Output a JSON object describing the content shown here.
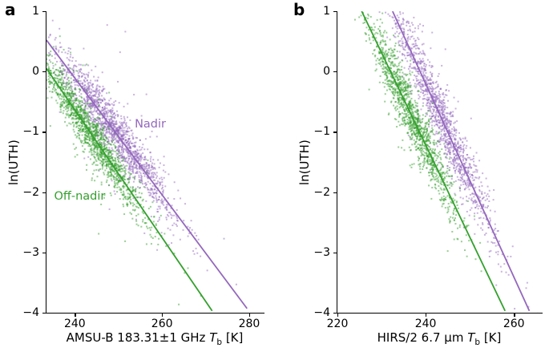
{
  "figure": {
    "background": "#ffffff"
  },
  "chart_data": [
    {
      "type": "scatter",
      "panel_label": "a",
      "ylabel": "ln(UTH)",
      "xlabel": {
        "pre": "AMSU-B 183.31±1 GHz ",
        "var": "T",
        "sub": "b",
        "post": " [K]"
      },
      "xlim": [
        233.5,
        283.5
      ],
      "ylim": [
        -4,
        1
      ],
      "xticks": [
        {
          "value": 240,
          "label": "240"
        },
        {
          "value": 260,
          "label": "260"
        },
        {
          "value": 280,
          "label": "280"
        }
      ],
      "yticks": [
        {
          "value": 1,
          "label": "1"
        },
        {
          "value": 0,
          "label": "0"
        },
        {
          "value": -1,
          "label": "−1"
        },
        {
          "value": -2,
          "label": "−2"
        },
        {
          "value": -3,
          "label": "−3"
        },
        {
          "value": -4,
          "label": "−4"
        }
      ],
      "series": [
        {
          "name": "Nadir",
          "color": "#9467bd",
          "line": {
            "x": [
              233.5,
              279.5
            ],
            "y": [
              0.52,
              -3.93
            ]
          },
          "scatter": {
            "count": 1500,
            "x_mean": 249.5,
            "x_sd": 7.0,
            "x_min": 234,
            "x_max": 282,
            "y_noise_sd": 0.2,
            "outlier_frac": 0.08,
            "outlier_mult": 2.8,
            "seed": 7
          }
        },
        {
          "name": "Off-nadir",
          "color": "#33a02c",
          "line": {
            "x": [
              233.5,
              271.5
            ],
            "y": [
              0.05,
              -3.97
            ]
          },
          "scatter": {
            "count": 1500,
            "x_mean": 243.5,
            "x_sd": 6.5,
            "x_min": 233.5,
            "x_max": 273,
            "y_noise_sd": 0.18,
            "outlier_frac": 0.08,
            "outlier_mult": 2.8,
            "seed": 11
          }
        }
      ],
      "annotations": [
        {
          "text": "Nadir",
          "x": 257.5,
          "y": -0.88,
          "color": "#9467bd"
        },
        {
          "text": "Off-nadir",
          "x": 241.3,
          "y": -2.07,
          "color": "#33a02c"
        }
      ]
    },
    {
      "type": "scatter",
      "panel_label": "b",
      "ylabel": "ln(UTH)",
      "xlabel": {
        "pre": "HIRS/2 6.7 μm ",
        "var": "T",
        "sub": "b",
        "post": " [K]"
      },
      "xlim": [
        220,
        266.5
      ],
      "ylim": [
        -4,
        1
      ],
      "xticks": [
        {
          "value": 220,
          "label": "220"
        },
        {
          "value": 240,
          "label": "240"
        },
        {
          "value": 260,
          "label": "260"
        }
      ],
      "yticks": [
        {
          "value": 1,
          "label": "1"
        },
        {
          "value": 0,
          "label": "0"
        },
        {
          "value": -1,
          "label": "−1"
        },
        {
          "value": -2,
          "label": "−2"
        },
        {
          "value": -3,
          "label": "−3"
        },
        {
          "value": -4,
          "label": "−4"
        }
      ],
      "series": [
        {
          "name": "Nadir",
          "color": "#9467bd",
          "line": {
            "x": [
              232.5,
              263.5
            ],
            "y": [
              1.0,
              -3.97
            ]
          },
          "scatter": {
            "count": 1300,
            "x_mean": 243.5,
            "x_sd": 6.0,
            "x_min": 227,
            "x_max": 266,
            "y_noise_sd": 0.27,
            "outlier_frac": 0.08,
            "outlier_mult": 2.2,
            "seed": 21
          }
        },
        {
          "name": "Off-nadir",
          "color": "#33a02c",
          "line": {
            "x": [
              225.5,
              258.0
            ],
            "y": [
              1.0,
              -3.97
            ]
          },
          "scatter": {
            "count": 1300,
            "x_mean": 237.0,
            "x_sd": 5.0,
            "x_min": 222,
            "x_max": 259,
            "y_noise_sd": 0.24,
            "outlier_frac": 0.08,
            "outlier_mult": 2.2,
            "seed": 31
          }
        }
      ],
      "annotations": []
    }
  ]
}
